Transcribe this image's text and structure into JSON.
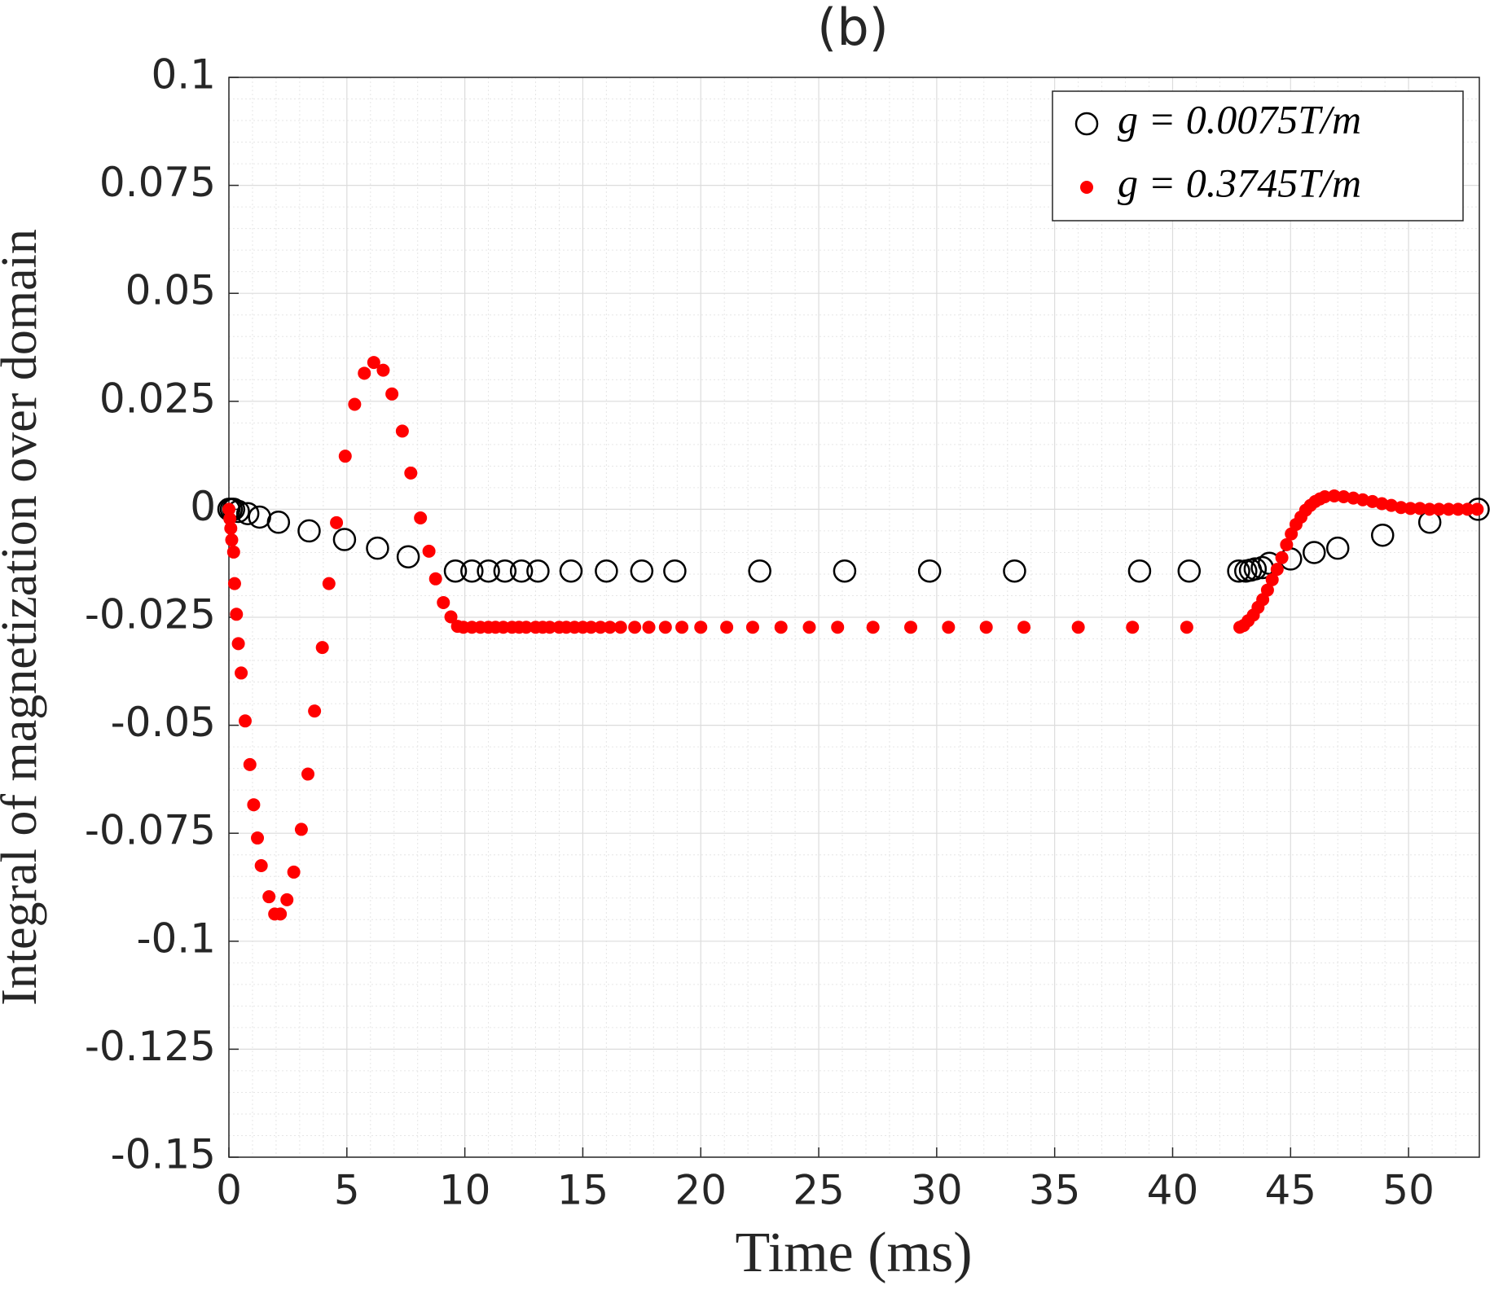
{
  "chart_data": {
    "type": "scatter",
    "title": "(b)",
    "x_label": "Time (ms)",
    "y_label": "Integral of magnetization over domain",
    "xlim": [
      0,
      53
    ],
    "ylim": [
      -0.15,
      0.1
    ],
    "xticks": [
      0,
      5,
      10,
      15,
      20,
      25,
      30,
      35,
      40,
      45,
      50
    ],
    "yticks": [
      -0.15,
      -0.125,
      -0.1,
      -0.075,
      -0.05,
      -0.025,
      0,
      0.025,
      0.05,
      0.075,
      0.1
    ],
    "grid": true,
    "minor_grid": true,
    "legend": "northeast",
    "series": [
      {
        "name": "g = 0.0075T/m",
        "color": "#000000",
        "marker": "open",
        "x": [
          0,
          0.1,
          0.2,
          0.4,
          0.8,
          1.3,
          2.1,
          3.4,
          4.9,
          6.3,
          7.6,
          9.6,
          10.3,
          11.0,
          11.7,
          12.4,
          13.1,
          14.5,
          16.0,
          17.5,
          18.9,
          22.5,
          26.1,
          29.7,
          33.3,
          38.6,
          40.7,
          42.8,
          43.1,
          43.3,
          43.5,
          43.8,
          44.1,
          45.0,
          46.0,
          47.0,
          48.9,
          50.9,
          52.95
        ],
        "values": [
          0,
          0,
          0,
          -0.0005,
          -0.001,
          -0.0018,
          -0.003,
          -0.005,
          -0.007,
          -0.009,
          -0.011,
          -0.0143,
          -0.0143,
          -0.0143,
          -0.0143,
          -0.0143,
          -0.0143,
          -0.0143,
          -0.0143,
          -0.0143,
          -0.0143,
          -0.0143,
          -0.0143,
          -0.0143,
          -0.0143,
          -0.0143,
          -0.0143,
          -0.0143,
          -0.0143,
          -0.0141,
          -0.0138,
          -0.0135,
          -0.0125,
          -0.0115,
          -0.01,
          -0.009,
          -0.006,
          -0.003,
          0
        ]
      },
      {
        "name": "g = 0.3745T/m",
        "color": "#ff0000",
        "marker": "filled",
        "x": [
          0,
          0.04,
          0.08,
          0.12,
          0.2,
          0.24,
          0.32,
          0.4,
          0.52,
          0.69,
          0.89,
          1.05,
          1.21,
          1.37,
          1.7,
          1.94,
          2.18,
          2.46,
          2.75,
          3.07,
          3.35,
          3.63,
          3.96,
          4.24,
          4.56,
          4.93,
          5.33,
          5.74,
          6.14,
          6.54,
          6.91,
          7.35,
          7.71,
          8.12,
          8.48,
          8.76,
          9.09,
          9.41,
          9.69,
          9.94,
          10.3,
          10.66,
          11.0,
          11.3,
          11.63,
          12.0,
          12.3,
          12.6,
          13.0,
          13.3,
          13.6,
          14.0,
          14.3,
          14.65,
          15.0,
          15.35,
          15.75,
          16.15,
          16.6,
          17.2,
          17.8,
          18.5,
          19.2,
          20.0,
          21.1,
          22.2,
          23.4,
          24.6,
          25.8,
          27.3,
          28.9,
          30.5,
          32.1,
          33.7,
          36.0,
          38.3,
          40.6,
          42.85,
          43.01,
          43.2,
          43.42,
          43.62,
          43.82,
          44.02,
          44.22,
          44.43,
          44.63,
          44.83,
          45.03,
          45.23,
          45.44,
          45.64,
          45.84,
          46.04,
          46.24,
          46.45,
          46.85,
          47.25,
          47.66,
          48.06,
          48.47,
          48.87,
          49.27,
          49.68,
          50.08,
          50.48,
          50.89,
          51.29,
          51.7,
          52.1,
          52.5,
          52.91
        ],
        "values": [
          0,
          -0.0022,
          -0.0044,
          -0.0071,
          -0.0099,
          -0.0172,
          -0.0243,
          -0.0311,
          -0.0379,
          -0.049,
          -0.0591,
          -0.0684,
          -0.0761,
          -0.0825,
          -0.0897,
          -0.0937,
          -0.0937,
          -0.0904,
          -0.084,
          -0.0741,
          -0.0613,
          -0.0467,
          -0.032,
          -0.0172,
          -0.0031,
          0.0123,
          0.0243,
          0.0315,
          0.034,
          0.0322,
          0.0267,
          0.0181,
          0.0084,
          -0.002,
          -0.0097,
          -0.0161,
          -0.0216,
          -0.0249,
          -0.0271,
          -0.0273,
          -0.0273,
          -0.0273,
          -0.0273,
          -0.0273,
          -0.0273,
          -0.0273,
          -0.0273,
          -0.0273,
          -0.0273,
          -0.0273,
          -0.0273,
          -0.0273,
          -0.0273,
          -0.0273,
          -0.0273,
          -0.0273,
          -0.0273,
          -0.0273,
          -0.0273,
          -0.0273,
          -0.0273,
          -0.0273,
          -0.0273,
          -0.0273,
          -0.0273,
          -0.0273,
          -0.0273,
          -0.0273,
          -0.0273,
          -0.0273,
          -0.0273,
          -0.0273,
          -0.0273,
          -0.0273,
          -0.0273,
          -0.0273,
          -0.0273,
          -0.0273,
          -0.0269,
          -0.0258,
          -0.0245,
          -0.0227,
          -0.0209,
          -0.0187,
          -0.0163,
          -0.0139,
          -0.0112,
          -0.0082,
          -0.0057,
          -0.0035,
          -0.0018,
          -0.0002,
          0.0009,
          0.0018,
          0.0024,
          0.0029,
          0.0031,
          0.0029,
          0.0026,
          0.0022,
          0.0018,
          0.0013,
          0.0009,
          0.0004,
          0.0002,
          0.0002,
          0,
          0,
          0,
          0,
          0,
          0
        ]
      }
    ]
  }
}
